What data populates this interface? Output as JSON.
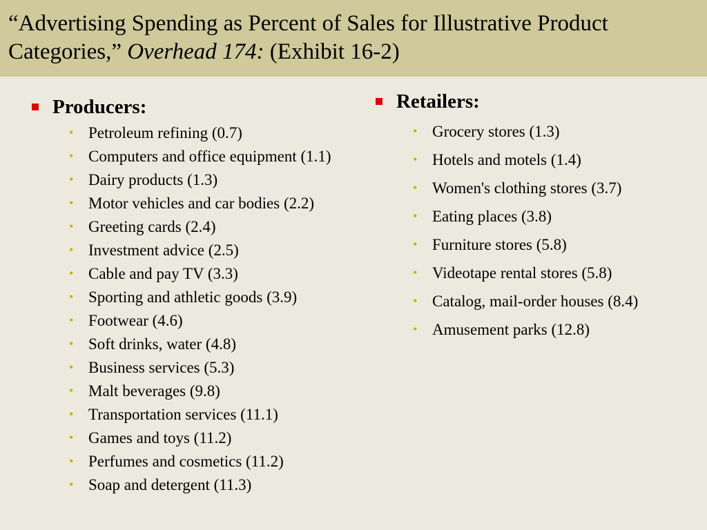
{
  "slide": {
    "title_part1": "“Advertising Spending as Percent of Sales for Illustrative Product Categories,” ",
    "title_italic": "Overhead 174:",
    "title_part2": "  (Exhibit 16-2)"
  },
  "producers": {
    "heading": "Producers:",
    "items": [
      "Petroleum refining (0.7)",
      "Computers and office equipment (1.1)",
      "Dairy products (1.3)",
      "Motor vehicles and car bodies (2.2)",
      "Greeting cards (2.4)",
      "Investment advice (2.5)",
      "Cable and pay TV (3.3)",
      "Sporting and athletic goods (3.9)",
      "Footwear (4.6)",
      "Soft drinks, water (4.8)",
      "Business services (5.3)",
      "Malt beverages (9.8)",
      "Transportation services (11.1)",
      "Games and toys (11.2)",
      "Perfumes and cosmetics (11.2)",
      "Soap and detergent (11.3)"
    ]
  },
  "retailers": {
    "heading": "Retailers:",
    "items": [
      "Grocery stores (1.3)",
      "Hotels and motels (1.4)",
      "Women's clothing stores (3.7)",
      "Eating places (3.8)",
      "Furniture stores (5.8)",
      "Videotape rental stores (5.8)",
      "Catalog, mail-order houses (8.4)",
      "Amusement parks  (12.8)"
    ]
  },
  "colors": {
    "title_bar": "#cfc99b",
    "background": "#ece9de",
    "square_bullet": "#e00000",
    "round_bullet": "#c7b300"
  }
}
